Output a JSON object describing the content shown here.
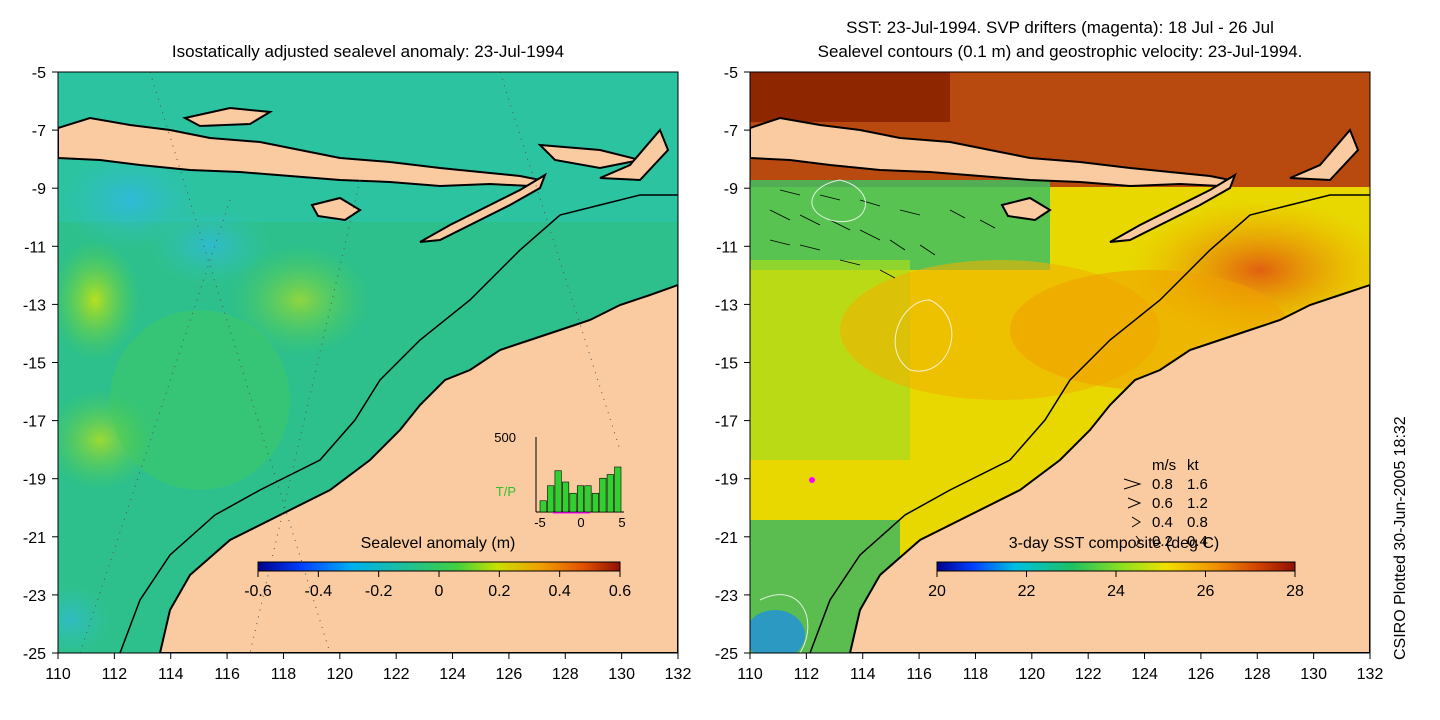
{
  "left_panel": {
    "title": "Isostatically adjusted sealevel anomaly: 23-Jul-1994",
    "colorbar": {
      "label": "Sealevel anomaly (m)",
      "ticks": [
        "-0.6",
        "-0.4",
        "-0.2",
        "0",
        "0.2",
        "0.4",
        "0.6"
      ]
    },
    "histogram": {
      "ymax_label": "500",
      "series_label": "T/P",
      "x_ticks": [
        "-5",
        "0",
        "5"
      ],
      "bar_values": [
        0.15,
        0.35,
        0.55,
        0.4,
        0.25,
        0.35,
        0.35,
        0.25,
        0.45,
        0.5,
        0.6
      ]
    }
  },
  "right_panel": {
    "title_line1": "SST: 23-Jul-1994. SVP drifters (magenta): 18 Jul - 26 Jul",
    "title_line2": "Sealevel contours (0.1 m) and geostrophic velocity: 23-Jul-1994.",
    "colorbar": {
      "label": "3-day SST composite (deg C)",
      "ticks": [
        "20",
        "22",
        "24",
        "26",
        "28"
      ]
    },
    "velocity_legend": {
      "header_ms": "m/s",
      "header_kt": "kt",
      "rows": [
        {
          "ms": "0.8",
          "kt": "1.6"
        },
        {
          "ms": "0.6",
          "kt": "1.2"
        },
        {
          "ms": "0.4",
          "kt": "0.8"
        },
        {
          "ms": "0.2",
          "kt": "0.4"
        }
      ]
    }
  },
  "axes": {
    "x_ticks": [
      "110",
      "112",
      "114",
      "116",
      "118",
      "120",
      "122",
      "124",
      "126",
      "128",
      "130",
      "132"
    ],
    "y_ticks": [
      "-5",
      "-7",
      "-9",
      "-11",
      "-13",
      "-15",
      "-17",
      "-19",
      "-21",
      "-23",
      "-25"
    ]
  },
  "credit": "CSIRO Plotted 30-Jun-2005 18:32",
  "colors": {
    "land": "#FACBA0",
    "sla_background": "#2FC28E",
    "coast": "#000000"
  }
}
